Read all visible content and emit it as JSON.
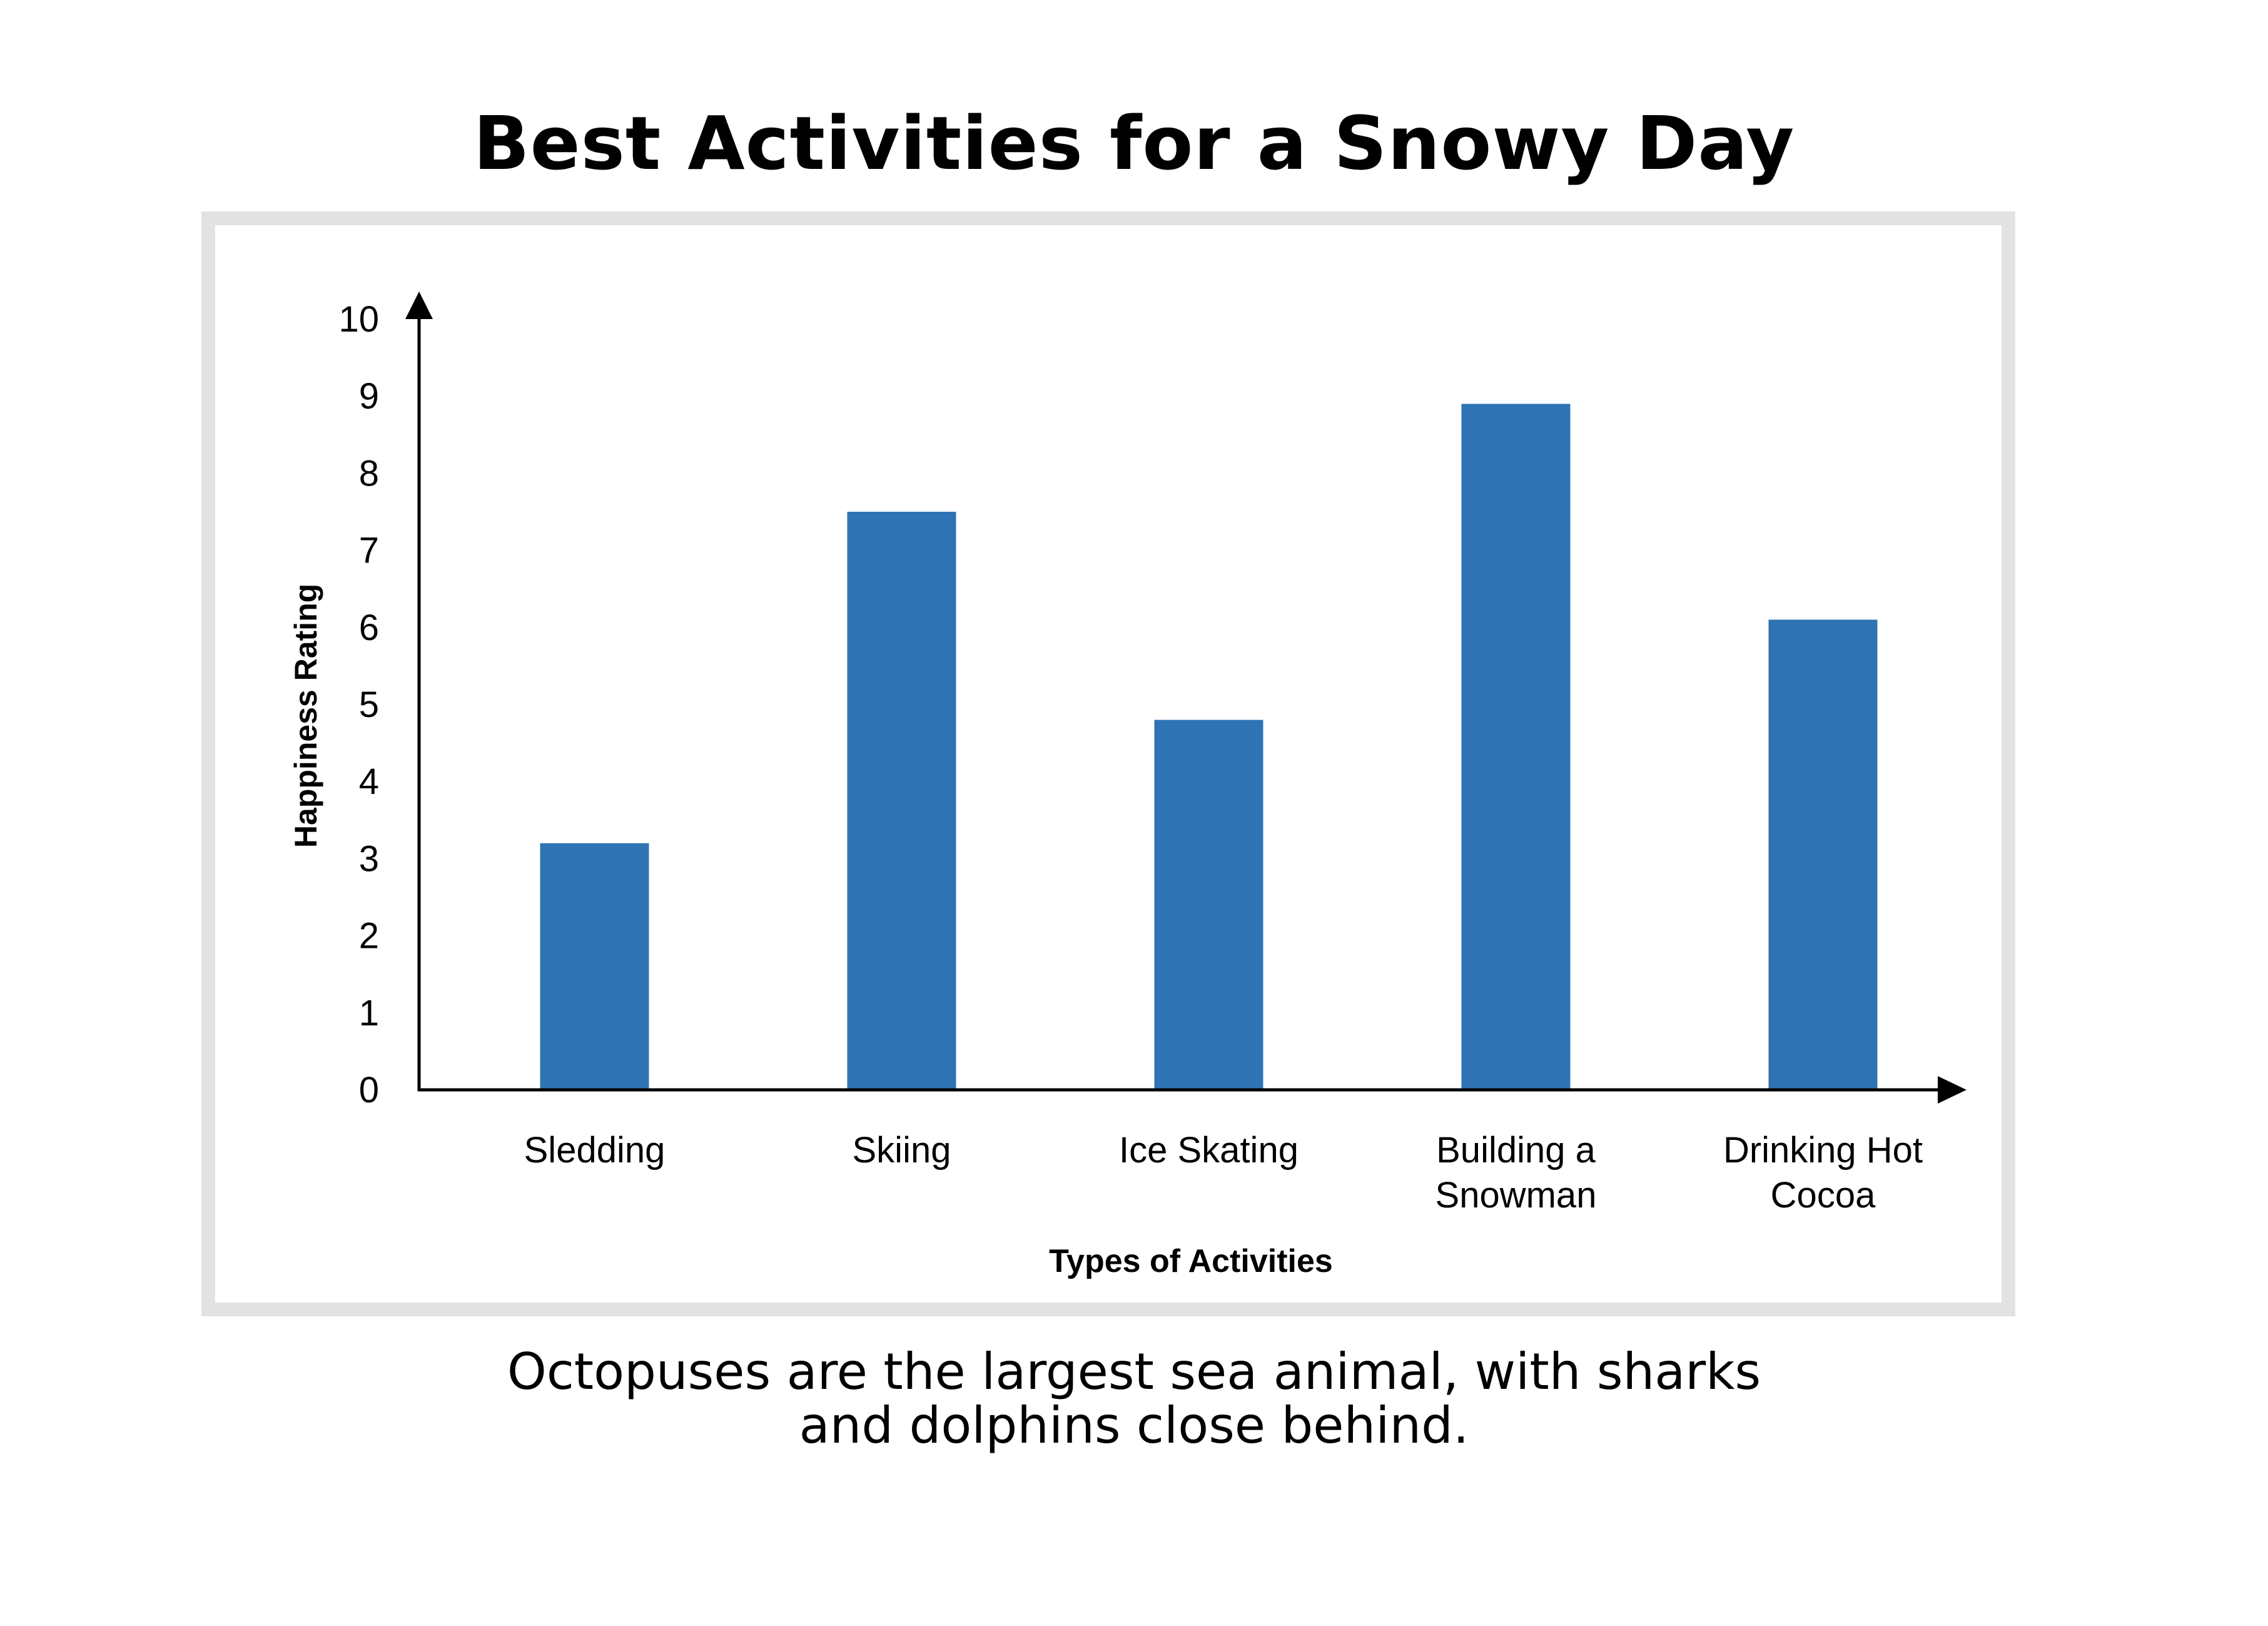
{
  "title": "Best Activities for a Snowy Day",
  "caption": {
    "line1": "Octopuses are the largest sea animal, with sharks",
    "line2": "and dolphins close behind."
  },
  "colors": {
    "bar": "#2e74b5",
    "axis": "#000000",
    "frame": "#e2e2e2"
  },
  "chart_data": {
    "type": "bar",
    "categories": [
      "Sledding",
      "Skiing",
      "Ice Skating",
      "Building a Snowman",
      "Drinking Hot Cocoa"
    ],
    "category_lines": [
      [
        "Sledding"
      ],
      [
        "Skiing"
      ],
      [
        "Ice Skating"
      ],
      [
        "Building a",
        "Snowman"
      ],
      [
        "Drinking Hot",
        "Cocoa"
      ]
    ],
    "values": [
      3.2,
      7.5,
      4.8,
      8.9,
      6.1
    ],
    "xlabel": "Types of Activities",
    "ylabel": "Happiness Rating",
    "ylim": [
      0,
      10
    ],
    "yticks": [
      "0",
      "1",
      "2",
      "3",
      "4",
      "5",
      "6",
      "7",
      "8",
      "9",
      "10"
    ],
    "grid": false,
    "legend": "none"
  }
}
